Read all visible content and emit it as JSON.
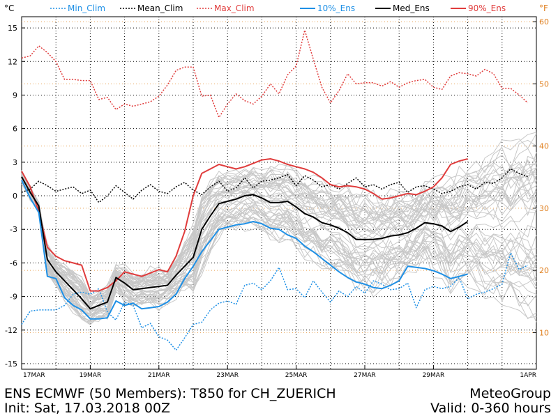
{
  "chart_data": {
    "type": "line",
    "x_labels": [
      "17MAR",
      "19MAR",
      "21MAR",
      "23MAR",
      "25MAR",
      "27MAR",
      "29MAR",
      "1APR"
    ],
    "x_range_hours": [
      0,
      360
    ],
    "step_hours": 6,
    "y_left": {
      "unit": "°C",
      "ylim": [
        -15.5,
        16
      ],
      "ticks": [
        -15,
        -12,
        -9,
        -6,
        -3,
        0,
        3,
        6,
        9,
        12,
        15
      ]
    },
    "y_right": {
      "unit": "°F",
      "ticks": [
        10,
        20,
        30,
        40,
        50,
        60
      ]
    },
    "legend": [
      {
        "name": "Min_Clim",
        "color": "#1e90e6",
        "dash": "dotted"
      },
      {
        "name": "Mean_Clim",
        "color": "#000000",
        "dash": "dotted"
      },
      {
        "name": "Max_Clim",
        "color": "#e03c3c",
        "dash": "dotted"
      },
      {
        "name": "10%_Ens",
        "color": "#1e90e6",
        "dash": "solid"
      },
      {
        "name": "Med_Ens",
        "color": "#000000",
        "dash": "solid"
      },
      {
        "name": "90%_Ens",
        "color": "#e03c3c",
        "dash": "solid"
      }
    ],
    "series": [
      {
        "name": "Max_Clim",
        "values": [
          12.3,
          12.5,
          13.4,
          12.8,
          12.0,
          10.4,
          10.4,
          10.3,
          10.3,
          8.6,
          8.8,
          7.7,
          8.2,
          8.0,
          8.2,
          8.4,
          8.9,
          9.9,
          11.2,
          11.5,
          11.5,
          8.9,
          9.0,
          7.0,
          8.2,
          9.1,
          8.5,
          8.2,
          8.9,
          10.0,
          9.1,
          10.8,
          11.6,
          14.8,
          12.2,
          9.7,
          8.3,
          9.4,
          10.9,
          10.0,
          10.1,
          10.1,
          9.8,
          10.2,
          9.7,
          10.1,
          10.3,
          10.4,
          9.7,
          9.5,
          10.7,
          11.0,
          10.9,
          10.7,
          11.3,
          10.9,
          9.6,
          9.6,
          9.0,
          8.3
        ]
      },
      {
        "name": "Mean_Clim",
        "values": [
          0.3,
          0.6,
          1.3,
          0.9,
          0.4,
          0.6,
          0.8,
          0.2,
          0.5,
          -0.6,
          0.0,
          0.9,
          0.3,
          -0.3,
          0.5,
          1.0,
          0.4,
          0.2,
          0.8,
          1.2,
          0.5,
          0.1,
          0.8,
          1.3,
          0.4,
          0.7,
          1.6,
          0.7,
          1.3,
          1.4,
          1.6,
          1.9,
          0.9,
          1.8,
          1.4,
          0.8,
          1.0,
          0.6,
          1.1,
          1.6,
          0.8,
          1.0,
          0.6,
          1.0,
          1.2,
          0.3,
          0.8,
          0.9,
          0.6,
          0.2,
          0.4,
          0.8,
          1.0,
          0.6,
          1.2,
          1.1,
          1.6,
          2.4,
          2.0,
          1.7
        ]
      },
      {
        "name": "Min_Clim",
        "values": [
          -11.5,
          -10.3,
          -10.2,
          -10.2,
          -10.2,
          -9.8,
          -8.8,
          -8.6,
          -8.8,
          -8.3,
          -10.4,
          -11.1,
          -9.5,
          -9.8,
          -11.8,
          -11.4,
          -12.6,
          -12.9,
          -13.8,
          -12.7,
          -11.5,
          -11.3,
          -10.2,
          -9.6,
          -9.4,
          -9.7,
          -8.0,
          -7.8,
          -8.4,
          -7.6,
          -6.4,
          -8.4,
          -8.3,
          -9.1,
          -7.6,
          -8.6,
          -9.5,
          -8.5,
          -9.0,
          -8.1,
          -8.7,
          -7.6,
          -7.9,
          -8.4,
          -8.3,
          -7.8,
          -10.0,
          -8.4,
          -8.1,
          -8.3,
          -8.1,
          -7.3,
          -9.2,
          -8.8,
          -8.6,
          -8.3,
          -7.9,
          -5.1,
          -6.6,
          -6.2
        ]
      },
      {
        "name": "90%_Ens",
        "values": [
          2.2,
          0.8,
          -1.4,
          -4.6,
          -5.4,
          -5.8,
          -6.0,
          -6.2,
          -8.5,
          -8.5,
          -8.2,
          -7.6,
          -6.8,
          -7.0,
          -7.2,
          -6.9,
          -6.6,
          -6.8,
          -5.4,
          -3.2,
          0.0,
          2.0,
          2.4,
          2.8,
          2.6,
          2.4,
          2.6,
          2.9,
          3.2,
          3.3,
          3.1,
          2.8,
          2.6,
          2.4,
          2.1,
          1.6,
          1.0,
          0.8,
          0.9,
          0.8,
          0.6,
          0.2,
          -0.3,
          -0.2,
          0.0,
          0.2,
          0.1,
          0.4,
          0.8,
          1.6,
          2.8,
          3.1,
          3.3
        ]
      },
      {
        "name": "Med_Ens",
        "values": [
          1.7,
          0.3,
          -0.9,
          -5.7,
          -6.8,
          -7.6,
          -8.4,
          -9.2,
          -10.1,
          -9.8,
          -9.5,
          -7.3,
          -7.8,
          -8.4,
          -8.3,
          -8.2,
          -8.1,
          -8.0,
          -7.1,
          -6.3,
          -5.5,
          -3.0,
          -1.8,
          -0.7,
          -0.5,
          -0.3,
          0.0,
          0.1,
          -0.2,
          -0.6,
          -0.6,
          -0.5,
          -1.0,
          -1.6,
          -1.9,
          -2.4,
          -2.6,
          -2.9,
          -3.3,
          -3.9,
          -3.9,
          -3.9,
          -3.8,
          -3.6,
          -3.5,
          -3.3,
          -2.9,
          -2.4,
          -2.5,
          -2.7,
          -3.2,
          -2.8,
          -2.3
        ]
      },
      {
        "name": "10%_Ens",
        "values": [
          1.4,
          -0.2,
          -1.5,
          -7.2,
          -7.4,
          -9.1,
          -9.8,
          -10.2,
          -11.0,
          -11.0,
          -10.9,
          -9.4,
          -9.8,
          -9.6,
          -10.1,
          -10.0,
          -9.9,
          -9.5,
          -8.8,
          -7.4,
          -6.3,
          -5.0,
          -4.0,
          -3.0,
          -2.8,
          -2.6,
          -2.5,
          -2.3,
          -2.5,
          -2.9,
          -3.0,
          -3.5,
          -3.8,
          -4.5,
          -5.0,
          -5.6,
          -6.2,
          -6.8,
          -7.3,
          -7.7,
          -7.9,
          -8.2,
          -8.3,
          -8.0,
          -7.6,
          -6.3,
          -6.4,
          -6.5,
          -6.7,
          -7.0,
          -7.4,
          -7.2,
          -7.0
        ]
      }
    ],
    "gray_members_shown": 50
  },
  "legend_labels": {
    "left_unit": "°C",
    "right_unit": "°F"
  },
  "footer": {
    "title": "ENS ECMWF (50 Members): T850 for CH_ZUERICH",
    "provider": "MeteoGroup",
    "init": "Init: Sat, 17.03.2018 00Z",
    "valid": "Valid: 0-360 hours"
  }
}
